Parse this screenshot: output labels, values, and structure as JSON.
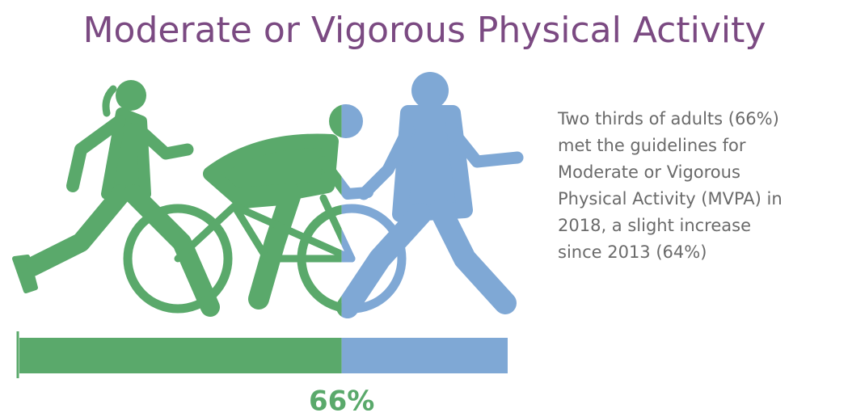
{
  "chart_data": {
    "type": "progress",
    "title": "Moderate or Vigorous Physical Activity",
    "text": [
      "Two thirds of adults (66%)",
      "met the guidelines for",
      "Moderate or Vigorous",
      "Physical Activity (MVPA) in",
      "2018, a slight increase",
      "since 2013 (64%)"
    ],
    "values": [
      66
    ],
    "value_labels": [
      "66%"
    ],
    "xlim": [
      0,
      100
    ],
    "colors": [
      "#5aa96b",
      "#7fa8d5"
    ]
  }
}
